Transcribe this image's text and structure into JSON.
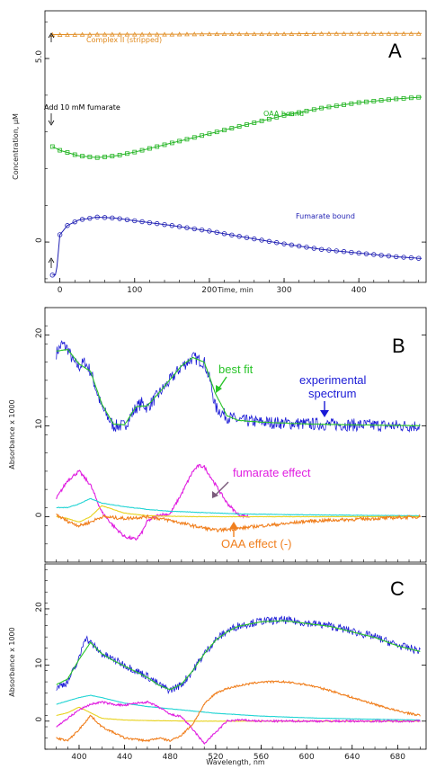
{
  "chart_data": [
    {
      "type": "scatter",
      "panel_label": "A",
      "xlabel": "Time, min",
      "ylabel": "Concentration, µM",
      "xlim": [
        -20,
        490
      ],
      "ylim": [
        -1.1,
        6.3
      ],
      "xticks": [
        0,
        100,
        200,
        300,
        400
      ],
      "yticks": [
        0,
        5.0
      ],
      "ytick_labels": [
        "0",
        "5.0"
      ],
      "series": [
        {
          "name": "Complex II (stripped)",
          "color": "#e08a1e",
          "marker": "triangle",
          "x": [
            -10,
            0,
            50,
            100,
            150,
            200,
            250,
            300,
            350,
            400,
            450,
            485
          ],
          "y": [
            5.65,
            5.65,
            5.66,
            5.66,
            5.66,
            5.67,
            5.67,
            5.67,
            5.68,
            5.68,
            5.68,
            5.68
          ]
        },
        {
          "name": "OAA bound",
          "color": "#1fb31f",
          "marker": "square",
          "x": [
            -10,
            0,
            25,
            50,
            75,
            100,
            150,
            200,
            250,
            300,
            350,
            400,
            450,
            485
          ],
          "y": [
            2.6,
            2.5,
            2.35,
            2.3,
            2.35,
            2.45,
            2.7,
            2.95,
            3.2,
            3.45,
            3.65,
            3.8,
            3.9,
            3.95
          ]
        },
        {
          "name": "Fumarate bound",
          "color": "#1f1fb3",
          "marker": "circle",
          "x": [
            -10,
            -5,
            0,
            10,
            25,
            50,
            75,
            100,
            150,
            200,
            250,
            300,
            350,
            400,
            450,
            485
          ],
          "y": [
            -0.9,
            -0.9,
            0.2,
            0.45,
            0.6,
            0.68,
            0.65,
            0.58,
            0.45,
            0.3,
            0.12,
            -0.05,
            -0.2,
            -0.3,
            -0.4,
            -0.45
          ]
        }
      ],
      "annotations": [
        {
          "text": "Complex II (stripped)",
          "color": "#e08a1e"
        },
        {
          "text": "Add 10 mM fumarate",
          "color": "#000000"
        },
        {
          "text": "OAA bound",
          "color": "#1fb31f"
        },
        {
          "text": "Fumarate bound",
          "color": "#1f1fb3"
        }
      ]
    },
    {
      "type": "line",
      "panel_label": "B",
      "xlabel": "",
      "ylabel": "Absorbance x 1000",
      "xlim": [
        370,
        705
      ],
      "ylim": [
        -5,
        23
      ],
      "yticks": [
        0,
        10,
        20
      ],
      "series": [
        {
          "name": "experimental spectrum",
          "color": "#1a1ad6",
          "x": [
            380,
            385,
            390,
            395,
            400,
            405,
            410,
            415,
            420,
            430,
            440,
            450,
            455,
            460,
            470,
            480,
            490,
            500,
            510,
            515,
            520,
            530,
            540,
            560,
            580,
            600,
            640,
            680,
            700
          ],
          "y": [
            18,
            19,
            18.5,
            17,
            16.5,
            17,
            16,
            14,
            12,
            10,
            10,
            12,
            12.5,
            12,
            13.5,
            15,
            16.5,
            17.5,
            17,
            15,
            12,
            11,
            10.6,
            10.4,
            10.3,
            10.2,
            10.1,
            10,
            10
          ]
        },
        {
          "name": "best fit",
          "color": "#29c429",
          "x": [
            380,
            390,
            400,
            410,
            420,
            430,
            440,
            450,
            460,
            470,
            480,
            490,
            500,
            510,
            520,
            530,
            540,
            560,
            600,
            640,
            700
          ],
          "y": [
            18.2,
            18.4,
            16.8,
            16,
            12.4,
            10.2,
            10.1,
            12.1,
            12.2,
            13.6,
            15.1,
            16.6,
            17.5,
            17,
            13.5,
            11.1,
            10.6,
            10.4,
            10.2,
            10.1,
            10
          ]
        },
        {
          "name": "fumarate effect",
          "color": "#e01ee0",
          "x": [
            380,
            390,
            400,
            410,
            420,
            430,
            440,
            450,
            455,
            460,
            470,
            480,
            490,
            500,
            505,
            510,
            520,
            530,
            540,
            550
          ],
          "y": [
            2,
            4,
            5,
            3.5,
            0.5,
            -1,
            -2.2,
            -2.5,
            -1.8,
            -0.5,
            0.2,
            0.3,
            2.5,
            5,
            5.6,
            5.5,
            3.5,
            1.5,
            0.2,
            0
          ]
        },
        {
          "name": "cyan component",
          "color": "#22d4d4",
          "x": [
            380,
            390,
            400,
            410,
            420,
            440,
            460,
            480,
            500,
            540,
            600,
            700
          ],
          "y": [
            1,
            1,
            1.4,
            2,
            1.5,
            1.1,
            0.8,
            0.6,
            0.5,
            0.3,
            0.2,
            0.1
          ]
        },
        {
          "name": "yellow component",
          "color": "#e8d21e",
          "x": [
            380,
            390,
            400,
            410,
            420,
            440,
            460,
            500,
            600,
            700
          ],
          "y": [
            0,
            -0.2,
            -0.6,
            0,
            1.2,
            0.4,
            0.1,
            0,
            0,
            0
          ]
        },
        {
          "name": "OAA effect (-)",
          "color": "#f07f1e",
          "x": [
            380,
            390,
            400,
            410,
            420,
            440,
            460,
            480,
            500,
            520,
            540,
            560,
            580,
            600,
            640,
            680,
            700
          ],
          "y": [
            0.2,
            -0.5,
            -1,
            -0.6,
            0,
            -0.2,
            0,
            -0.4,
            -1,
            -1.5,
            -1.3,
            -1,
            -0.8,
            -0.5,
            -0.3,
            -0.1,
            0
          ]
        }
      ],
      "annotations": [
        {
          "text": "best fit",
          "color": "#29c429"
        },
        {
          "text": "experimental",
          "color": "#1a1ad6"
        },
        {
          "text": "spectrum",
          "color": "#1a1ad6"
        },
        {
          "text": "fumarate effect",
          "color": "#e01ee0"
        },
        {
          "text": "OAA effect (-)",
          "color": "#f07f1e"
        }
      ]
    },
    {
      "type": "line",
      "panel_label": "C",
      "xlabel": "Wavelength, nm",
      "ylabel": "Absorbance x 1000",
      "xlim": [
        370,
        705
      ],
      "ylim": [
        -5,
        28
      ],
      "xticks": [
        400,
        440,
        480,
        520,
        560,
        600,
        640,
        680
      ],
      "yticks": [
        0,
        10,
        20
      ],
      "series": [
        {
          "name": "experimental",
          "color": "#1a1ad6",
          "x": [
            380,
            390,
            400,
            405,
            410,
            420,
            430,
            440,
            450,
            460,
            470,
            480,
            490,
            500,
            510,
            520,
            530,
            540,
            560,
            580,
            600,
            620,
            640,
            660,
            680,
            700
          ],
          "y": [
            6,
            7,
            11,
            15,
            14,
            12,
            11,
            10,
            9,
            8,
            6.5,
            5.5,
            6.5,
            9,
            12,
            14.5,
            16,
            17,
            17.8,
            18,
            17.5,
            17,
            16,
            15,
            13.5,
            12.5
          ]
        },
        {
          "name": "fit",
          "color": "#29c429",
          "x": [
            380,
            390,
            400,
            410,
            420,
            430,
            440,
            450,
            460,
            470,
            480,
            490,
            500,
            510,
            520,
            530,
            540,
            560,
            580,
            600,
            620,
            640,
            660,
            680,
            700
          ],
          "y": [
            6.5,
            7.5,
            11,
            14,
            12,
            10.8,
            9.8,
            8.8,
            7.8,
            6.4,
            5.6,
            6.6,
            9,
            12,
            14.4,
            15.9,
            16.9,
            17.7,
            17.9,
            17.4,
            16.9,
            15.9,
            14.9,
            13.4,
            12.4
          ]
        },
        {
          "name": "cyan component",
          "color": "#22d4d4",
          "x": [
            380,
            390,
            400,
            410,
            420,
            440,
            460,
            480,
            500,
            520,
            560,
            600,
            640,
            700
          ],
          "y": [
            3,
            3.6,
            4.2,
            4.6,
            4.2,
            3.2,
            2.6,
            2.2,
            1.8,
            1.4,
            0.9,
            0.6,
            0.4,
            0.2
          ]
        },
        {
          "name": "yellow component",
          "color": "#e8d21e",
          "x": [
            380,
            390,
            400,
            410,
            420,
            440,
            460,
            500,
            560,
            700
          ],
          "y": [
            1,
            1.5,
            2.5,
            1.5,
            0.5,
            0.2,
            0.1,
            0,
            0,
            0
          ]
        },
        {
          "name": "magenta component",
          "color": "#e01ee0",
          "x": [
            380,
            390,
            400,
            410,
            420,
            430,
            440,
            450,
            460,
            470,
            480,
            490,
            500,
            510,
            520,
            530,
            540,
            560,
            600,
            700
          ],
          "y": [
            -1,
            0.5,
            2,
            3,
            3.4,
            3,
            2.8,
            3.2,
            3.4,
            2.5,
            1.2,
            0.8,
            -1.5,
            -4,
            -2,
            0,
            0.2,
            0,
            0,
            0
          ]
        },
        {
          "name": "orange component",
          "color": "#f07f1e",
          "x": [
            380,
            390,
            400,
            410,
            420,
            440,
            460,
            470,
            480,
            490,
            500,
            510,
            520,
            530,
            540,
            560,
            580,
            600,
            620,
            640,
            660,
            680,
            700
          ],
          "y": [
            -3,
            -3.5,
            -1.5,
            1,
            -1,
            -3,
            -3.5,
            -3,
            -3.5,
            -2.5,
            -0.5,
            3,
            5,
            5.8,
            6.3,
            7,
            7,
            6.5,
            5.5,
            4.2,
            3,
            1.8,
            1
          ]
        }
      ],
      "annotations": []
    }
  ]
}
